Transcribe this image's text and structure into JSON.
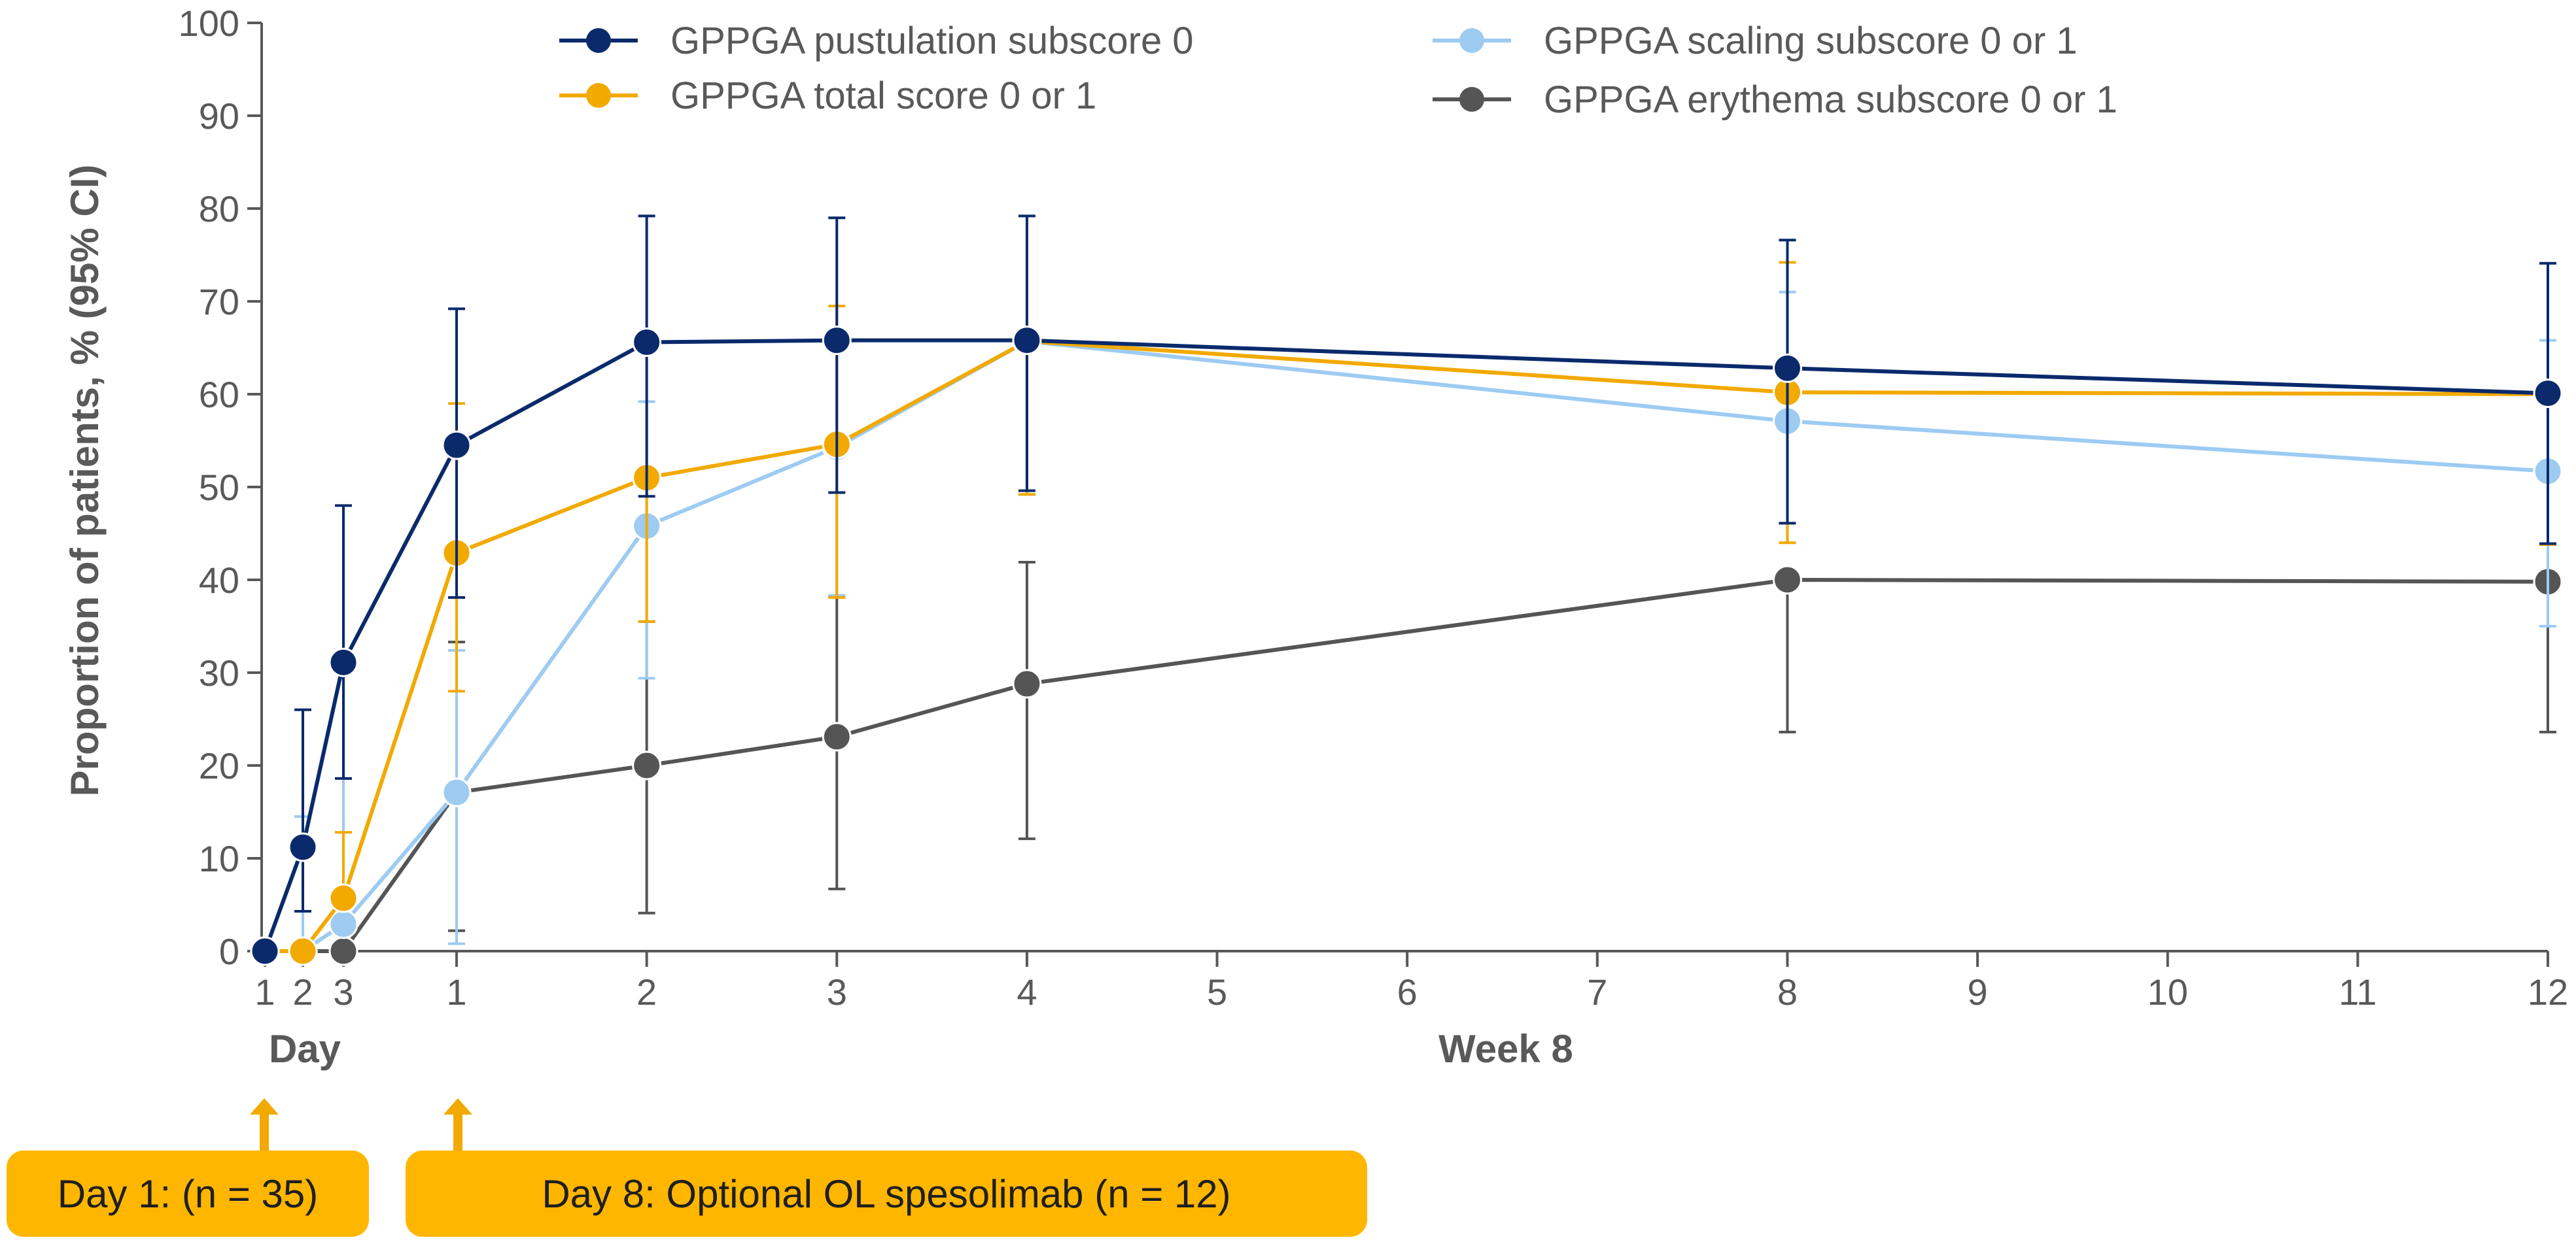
{
  "chart_data": {
    "type": "line",
    "title": "",
    "ylabel": "Proportion of patients, % (95% CI)",
    "ylim": [
      0,
      100
    ],
    "yticks": [
      0,
      10,
      20,
      30,
      40,
      50,
      60,
      70,
      80,
      90,
      100
    ],
    "x_positions": [
      1,
      2,
      3,
      4,
      5,
      6,
      7,
      8,
      9,
      10,
      11,
      12,
      13,
      14,
      15,
      16,
      17,
      18,
      19,
      20
    ],
    "x_tick_labels": [
      "1",
      "2",
      "3",
      "1",
      "2",
      "3",
      "4",
      "5",
      "6",
      "7",
      "8",
      "9",
      "10",
      "11",
      "12"
    ],
    "x_tick_values": [
      1,
      2,
      3,
      7,
      14,
      21,
      28,
      35,
      42,
      49,
      56,
      63,
      70,
      77,
      84
    ],
    "x_group_labels": {
      "day": "Day",
      "week": "Week 8"
    },
    "legend": [
      {
        "label": "GPPGA pustulation subscore 0",
        "color": "#0A2A6B"
      },
      {
        "label": "GPPGA total score 0 or 1",
        "color": "#F2A900"
      },
      {
        "label": "GPPGA scaling subscore 0 or 1",
        "color": "#9DCBF2"
      },
      {
        "label": "GPPGA erythema subscore 0 or 1",
        "color": "#555555"
      }
    ],
    "series": [
      {
        "name": "GPPGA erythema subscore 0 or 1",
        "color": "#555555",
        "x": [
          1,
          2,
          3,
          7,
          14,
          21,
          28,
          56,
          84
        ],
        "values": [
          0,
          0,
          0,
          17.1,
          20.0,
          23.1,
          28.8,
          40.0,
          39.8
        ],
        "ci_low": [
          null,
          null,
          null,
          2.2,
          4.1,
          6.7,
          12.1,
          23.6,
          23.6
        ],
        "ci_high": [
          null,
          null,
          null,
          33.3,
          35.5,
          38.3,
          41.9,
          null,
          null
        ]
      },
      {
        "name": "GPPGA scaling subscore 0 or 1",
        "color": "#9DCBF2",
        "x": [
          1,
          2,
          3,
          7,
          14,
          21,
          28,
          56,
          84
        ],
        "values": [
          0,
          0,
          2.9,
          17.1,
          45.8,
          54.3,
          65.7,
          57.1,
          51.7
        ],
        "ci_low": [
          null,
          null,
          null,
          0.8,
          29.4,
          38.3,
          49.2,
          null,
          35.0
        ],
        "ci_high": [
          null,
          14.5,
          18.6,
          32.4,
          59.2,
          null,
          null,
          71.0,
          65.8
        ]
      },
      {
        "name": "GPPGA total score 0 or 1",
        "color": "#F2A900",
        "x": [
          1,
          2,
          3,
          7,
          14,
          21,
          28,
          56,
          84
        ],
        "values": [
          0,
          0,
          5.7,
          42.9,
          51.0,
          54.6,
          65.7,
          60.2,
          60.0
        ],
        "ci_low": [
          null,
          null,
          null,
          28.0,
          35.5,
          38.1,
          49.2,
          44.0,
          43.8
        ],
        "ci_high": [
          null,
          null,
          12.8,
          59.0,
          null,
          69.5,
          null,
          74.2,
          null
        ]
      },
      {
        "name": "GPPGA pustulation subscore 0",
        "color": "#0A2A6B",
        "x": [
          1,
          2,
          3,
          7,
          14,
          21,
          28,
          56,
          84
        ],
        "values": [
          0,
          11.2,
          31.1,
          54.5,
          65.6,
          65.8,
          65.8,
          62.8,
          60.1
        ],
        "ci_low": [
          null,
          4.3,
          18.6,
          38.1,
          49.0,
          49.4,
          49.6,
          46.1,
          43.9
        ],
        "ci_high": [
          null,
          26.0,
          48.0,
          69.2,
          79.2,
          79.0,
          79.2,
          76.6,
          74.1
        ]
      }
    ]
  },
  "callouts": {
    "day1": "Day 1: (n = 35)",
    "day8": "Day 8: Optional OL spesolimab (n = 12)",
    "arrow_color": "#F2A900",
    "box_color": "#FFB600"
  }
}
